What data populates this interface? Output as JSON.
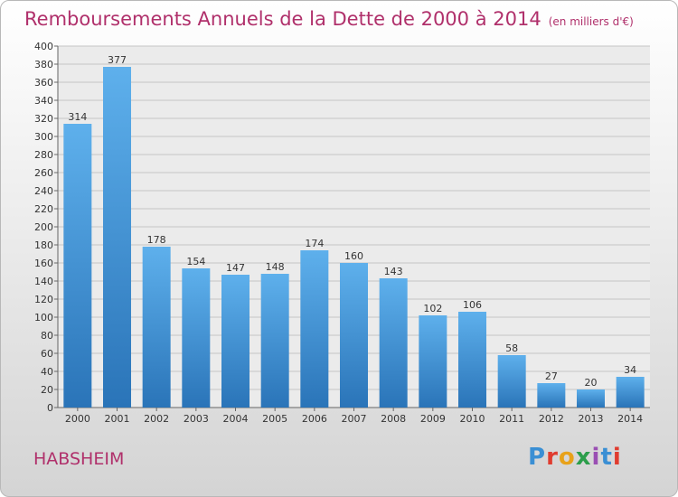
{
  "title": "Remboursements Annuels de la Dette de 2000 à 2014",
  "unit": "(en milliers d'€)",
  "city": "HABSHEIM",
  "logo": {
    "text": "Proxiti",
    "colors": [
      "#3a8fd4",
      "#e03c2f",
      "#e8a21a",
      "#2c9e4b",
      "#9a4fb3",
      "#3a8fd4",
      "#e03c2f"
    ]
  },
  "colors": {
    "bar_top": "#5eb0ec",
    "bar_bottom": "#2a74b8",
    "title": "#b0306b",
    "grid": "#c4c4c4"
  },
  "chart_data": {
    "type": "bar",
    "title": "Remboursements Annuels de la Dette de 2000 à 2014",
    "categories": [
      "2000",
      "2001",
      "2002",
      "2003",
      "2004",
      "2005",
      "2006",
      "2007",
      "2008",
      "2009",
      "2010",
      "2011",
      "2012",
      "2013",
      "2014"
    ],
    "values": [
      314,
      377,
      178,
      154,
      147,
      148,
      174,
      160,
      143,
      102,
      106,
      58,
      27,
      20,
      34
    ],
    "ylim": [
      0,
      400
    ],
    "ytick_step": 20,
    "grid": true
  }
}
